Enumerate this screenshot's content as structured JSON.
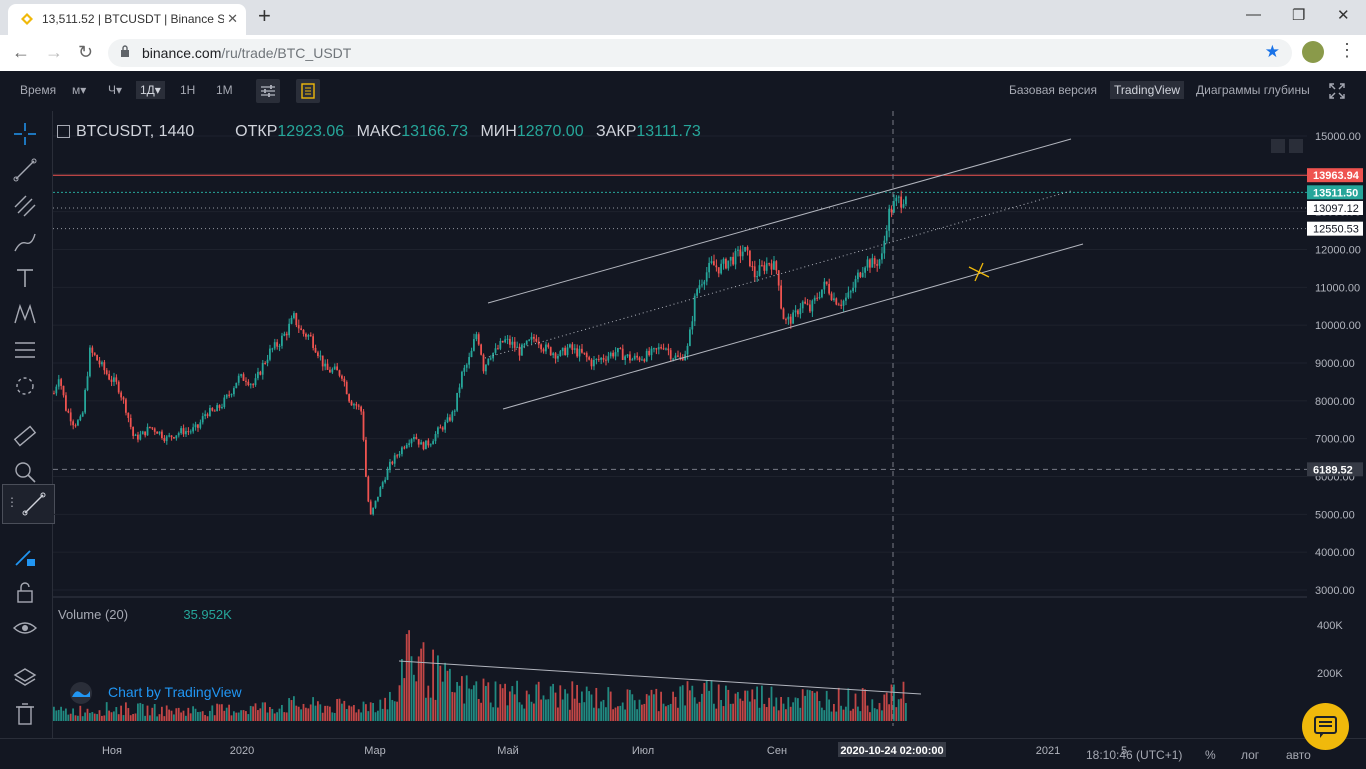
{
  "browser": {
    "tab_title": "13,511.52 | BTCUSDT | Binance Sp",
    "url_host": "binance.com",
    "url_path": "/ru/trade/BTC_USDT"
  },
  "toolbar": {
    "time_label": "Время",
    "intervals": [
      "м▾",
      "Ч▾",
      "1Д▾",
      "1Н",
      "1М"
    ],
    "active_interval": "1Д▾",
    "views": [
      "Базовая версия",
      "TradingView",
      "Диаграммы глубины"
    ],
    "active_view": "TradingView"
  },
  "legend": {
    "symbol": "BTCUSDT, 1440",
    "open_label": "ОТКР",
    "open": "12923.06",
    "high_label": "МАКС",
    "high": "13166.73",
    "low_label": "МИН",
    "low": "12870.00",
    "close_label": "ЗАКР",
    "close": "13111.73"
  },
  "volume_legend": {
    "label": "Volume (20)",
    "value": "35.952K"
  },
  "brand": "Chart by TradingView",
  "bottom": {
    "clock": "18:10:46 (UTC+1)",
    "percent": "%",
    "log": "лог",
    "auto": "авто"
  },
  "colors": {
    "up": "#26a69a",
    "down": "#ef5350",
    "background": "#131722",
    "grid": "#1e222d",
    "accent": "#f0b90b"
  },
  "chart_data": {
    "type": "candlestick",
    "symbol": "BTCUSDT",
    "timeframe": "1440",
    "price_axis_ticks": [
      "15000.00",
      "14000.00",
      "13000.00",
      "12000.00",
      "11000.00",
      "10000.00",
      "9000.00",
      "8000.00",
      "7000.00",
      "6000.00",
      "5000.00",
      "4000.00",
      "3000.00"
    ],
    "price_labels": [
      {
        "value": "13963.94",
        "color": "#ef5350"
      },
      {
        "value": "13511.50",
        "color": "#26a69a"
      },
      {
        "value": "13097.12",
        "color": "#ffffff"
      },
      {
        "value": "12550.53",
        "color": "#ffffff"
      },
      {
        "value": "6189.52",
        "color": "#363a45"
      }
    ],
    "volume_axis_ticks": [
      "400K",
      "200K"
    ],
    "time_axis_ticks": [
      "Ноя",
      "2020",
      "Мар",
      "Май",
      "Июл",
      "Сен",
      "2021",
      "5"
    ],
    "crosshair_time": "2020-10-24 02:00:00",
    "ylim": [
      3000,
      15000
    ],
    "path": [
      [
        0,
        8200
      ],
      [
        5,
        8700
      ],
      [
        12,
        7800
      ],
      [
        20,
        7400
      ],
      [
        28,
        7500
      ],
      [
        36,
        9300
      ],
      [
        40,
        9200
      ],
      [
        48,
        8900
      ],
      [
        56,
        8600
      ],
      [
        64,
        8400
      ],
      [
        72,
        7800
      ],
      [
        80,
        7000
      ],
      [
        88,
        7100
      ],
      [
        96,
        7300
      ],
      [
        104,
        7200
      ],
      [
        112,
        7000
      ],
      [
        120,
        7100
      ],
      [
        128,
        7200
      ],
      [
        136,
        7200
      ],
      [
        144,
        7300
      ],
      [
        152,
        7700
      ],
      [
        160,
        7700
      ],
      [
        168,
        7900
      ],
      [
        176,
        8200
      ],
      [
        184,
        8600
      ],
      [
        192,
        8600
      ],
      [
        200,
        8400
      ],
      [
        208,
        8900
      ],
      [
        216,
        9300
      ],
      [
        224,
        9500
      ],
      [
        232,
        9800
      ],
      [
        240,
        10200
      ],
      [
        248,
        9800
      ],
      [
        256,
        9700
      ],
      [
        264,
        9300
      ],
      [
        272,
        8800
      ],
      [
        280,
        8800
      ],
      [
        288,
        8700
      ],
      [
        296,
        8000
      ],
      [
        302,
        7900
      ],
      [
        308,
        7700
      ],
      [
        312,
        6000
      ],
      [
        316,
        4900
      ],
      [
        320,
        5200
      ],
      [
        328,
        5800
      ],
      [
        336,
        6300
      ],
      [
        344,
        6600
      ],
      [
        352,
        6900
      ],
      [
        360,
        7100
      ],
      [
        368,
        6800
      ],
      [
        376,
        6900
      ],
      [
        384,
        7200
      ],
      [
        392,
        7400
      ],
      [
        400,
        7700
      ],
      [
        408,
        8700
      ],
      [
        414,
        9000
      ],
      [
        418,
        9300
      ],
      [
        422,
        9800
      ],
      [
        426,
        9500
      ],
      [
        430,
        8800
      ],
      [
        434,
        9200
      ],
      [
        442,
        9300
      ],
      [
        450,
        9600
      ],
      [
        458,
        9500
      ],
      [
        466,
        9300
      ],
      [
        474,
        9500
      ],
      [
        482,
        9700
      ],
      [
        490,
        9400
      ],
      [
        498,
        9300
      ],
      [
        506,
        9200
      ],
      [
        514,
        9400
      ],
      [
        522,
        9300
      ],
      [
        530,
        9200
      ],
      [
        538,
        9000
      ],
      [
        546,
        9100
      ],
      [
        554,
        9200
      ],
      [
        562,
        9300
      ],
      [
        570,
        9200
      ],
      [
        578,
        9100
      ],
      [
        586,
        9150
      ],
      [
        594,
        9200
      ],
      [
        602,
        9300
      ],
      [
        610,
        9500
      ],
      [
        618,
        9200
      ],
      [
        626,
        9100
      ],
      [
        634,
        9400
      ],
      [
        642,
        10900
      ],
      [
        650,
        11300
      ],
      [
        658,
        11600
      ],
      [
        666,
        11500
      ],
      [
        674,
        11700
      ],
      [
        682,
        11800
      ],
      [
        690,
        12000
      ],
      [
        696,
        11700
      ],
      [
        700,
        11300
      ],
      [
        708,
        11500
      ],
      [
        716,
        11700
      ],
      [
        724,
        11400
      ],
      [
        728,
        10300
      ],
      [
        732,
        10100
      ],
      [
        740,
        10200
      ],
      [
        748,
        10600
      ],
      [
        756,
        10400
      ],
      [
        764,
        10800
      ],
      [
        772,
        11100
      ],
      [
        780,
        10700
      ],
      [
        788,
        10600
      ],
      [
        796,
        10800
      ],
      [
        804,
        11300
      ],
      [
        812,
        11700
      ],
      [
        820,
        11600
      ],
      [
        828,
        11800
      ],
      [
        834,
        12900
      ],
      [
        838,
        13100
      ],
      [
        844,
        13300
      ],
      [
        848,
        13300
      ],
      [
        852,
        13511
      ]
    ],
    "volume_path": [
      [
        0,
        40
      ],
      [
        60,
        55
      ],
      [
        120,
        45
      ],
      [
        180,
        50
      ],
      [
        240,
        70
      ],
      [
        300,
        60
      ],
      [
        346,
        100
      ],
      [
        352,
        400
      ],
      [
        360,
        260
      ],
      [
        400,
        140
      ],
      [
        460,
        120
      ],
      [
        520,
        110
      ],
      [
        580,
        90
      ],
      [
        640,
        120
      ],
      [
        700,
        110
      ],
      [
        760,
        100
      ],
      [
        820,
        90
      ],
      [
        848,
        110
      ]
    ]
  }
}
